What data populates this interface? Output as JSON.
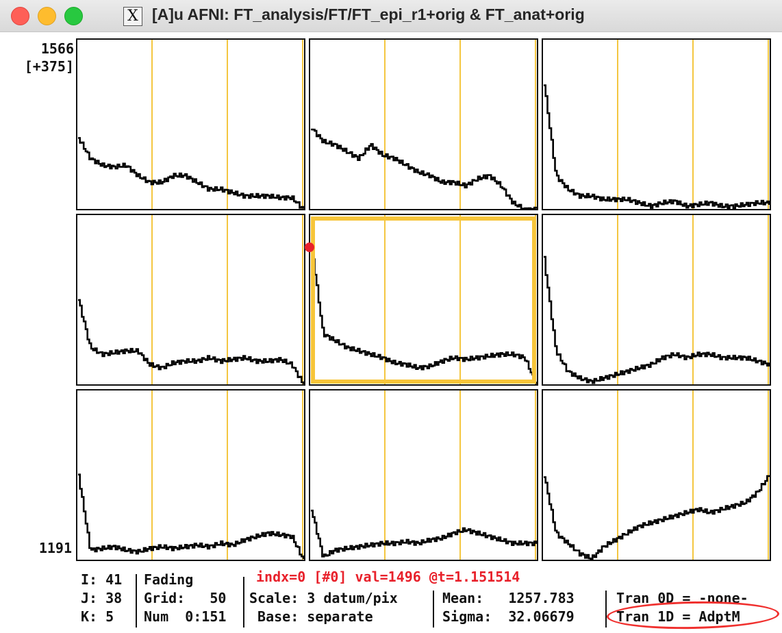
{
  "window": {
    "title": "[A]u AFNI: FT_analysis/FT/FT_epi_r1+orig & FT_anat+orig",
    "app_icon": "x11-icon"
  },
  "yaxis": {
    "top": "1566\n[+375]",
    "bottom": "1191"
  },
  "colors": {
    "grid": "#f0b400",
    "selected": "#f7c53a",
    "trace": "#000000",
    "marker": "#e8212b"
  },
  "graph_panels": [
    {
      "row": 0,
      "col": 0,
      "selected": false
    },
    {
      "row": 0,
      "col": 1,
      "selected": false
    },
    {
      "row": 0,
      "col": 2,
      "selected": false
    },
    {
      "row": 1,
      "col": 0,
      "selected": false
    },
    {
      "row": 1,
      "col": 1,
      "selected": true
    },
    {
      "row": 1,
      "col": 2,
      "selected": false
    },
    {
      "row": 2,
      "col": 0,
      "selected": false
    },
    {
      "row": 2,
      "col": 1,
      "selected": false
    },
    {
      "row": 2,
      "col": 2,
      "selected": false
    }
  ],
  "status": {
    "i": "I: 41",
    "j": "J: 38",
    "k": "K: 5",
    "fading": "Fading",
    "grid": "Grid:   50",
    "num": "Num  0:151",
    "index_line": "indx=0 [#0] val=1496 @t=1.151514",
    "scale": "Scale: 3 datum/pix",
    "base": " Base: separate",
    "mean": "Mean:   1257.783",
    "sigma": "Sigma:  32.06679",
    "tran0d": "Tran 0D = -none-",
    "tran1d": "Tran 1D = AdptM"
  }
}
